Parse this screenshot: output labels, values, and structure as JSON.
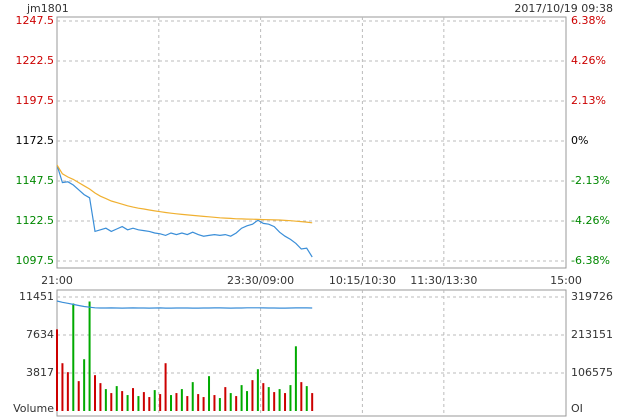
{
  "chart_data": [
    {
      "type": "line",
      "title": "jm1801",
      "subtitle": "2017/10/19 09:38",
      "xlim": [
        0,
        375
      ],
      "xticks": [
        {
          "value": 0,
          "label": "21:00"
        },
        {
          "value": 75,
          "label": null
        },
        {
          "value": 150,
          "label": "23:30/09:00"
        },
        {
          "value": 225,
          "label": "10:15/10:30"
        },
        {
          "value": 285,
          "label": "11:30/13:30"
        },
        {
          "value": 375,
          "label": "15:00"
        }
      ],
      "x": [
        0,
        4,
        8,
        12,
        16,
        20,
        24,
        28,
        32,
        36,
        40,
        44,
        48,
        52,
        56,
        60,
        64,
        68,
        72,
        76,
        80,
        84,
        88,
        92,
        96,
        100,
        104,
        108,
        112,
        116,
        120,
        124,
        128,
        132,
        136,
        140,
        144,
        148,
        152,
        156,
        160,
        164,
        168,
        172,
        176,
        180,
        184,
        188
      ],
      "ylim": [
        1097.5,
        1247.5
      ],
      "yticks": [
        1097.5,
        1122.5,
        1147.5,
        1172.5,
        1197.5,
        1222.5,
        1247.5
      ],
      "reference": 1172.5,
      "y2lim": [
        -6.38,
        6.38
      ],
      "y2ticks": [
        {
          "value": -6.38,
          "label": "-6.38%"
        },
        {
          "value": -4.26,
          "label": "-4.26%"
        },
        {
          "value": -2.13,
          "label": "-2.13%"
        },
        {
          "value": 0,
          "label": "0%"
        },
        {
          "value": 2.13,
          "label": "2.13%"
        },
        {
          "value": 4.26,
          "label": "4.26%"
        },
        {
          "value": 6.38,
          "label": "6.38%"
        }
      ],
      "up_color": "#cc0000",
      "down_color": "#008800",
      "grid": true,
      "series": [
        {
          "color": "#3a8ed8",
          "values": [
            1157.5,
            1146.5,
            1147,
            1145,
            1142,
            1139,
            1137,
            1116,
            1117,
            1118,
            1116,
            1117.5,
            1119,
            1117,
            1118,
            1117,
            1116.5,
            1116,
            1115,
            1114.5,
            1113.5,
            1115,
            1114,
            1115,
            1114,
            1115.5,
            1114,
            1113,
            1113.5,
            1114,
            1113.5,
            1114,
            1113,
            1115,
            1118,
            1119.5,
            1120.5,
            1123,
            1121,
            1120.5,
            1119,
            1115.5,
            1113,
            1111,
            1108.5,
            1105,
            1105.5,
            1100
          ]
        },
        {
          "color": "#f0b030",
          "values": [
            1157.5,
            1152,
            1150,
            1148.5,
            1146.5,
            1144.5,
            1142.5,
            1140,
            1138,
            1136.5,
            1135,
            1134,
            1133,
            1132,
            1131.2,
            1130.5,
            1130,
            1129.4,
            1128.8,
            1128.3,
            1127.8,
            1127.4,
            1127,
            1126.6,
            1126.3,
            1126,
            1125.7,
            1125.4,
            1125.1,
            1124.8,
            1124.5,
            1124.3,
            1124.1,
            1123.9,
            1123.8,
            1123.7,
            1123.6,
            1123.5,
            1123.4,
            1123.3,
            1123.2,
            1123.1,
            1122.9,
            1122.7,
            1122.4,
            1122.1,
            1121.8,
            1121.4
          ]
        }
      ]
    },
    {
      "type": "bar",
      "ylabel": "Volume",
      "y2label": "OI",
      "xlim": [
        0,
        375
      ],
      "x": [
        0,
        4,
        8,
        12,
        16,
        20,
        24,
        28,
        32,
        36,
        40,
        44,
        48,
        52,
        56,
        60,
        64,
        68,
        72,
        76,
        80,
        84,
        88,
        92,
        96,
        100,
        104,
        108,
        112,
        116,
        120,
        124,
        128,
        132,
        136,
        140,
        144,
        148,
        152,
        156,
        160,
        164,
        168,
        172,
        176,
        180,
        184,
        188
      ],
      "ylim": [
        0,
        11451
      ],
      "yticks": [
        3817,
        7634,
        11451
      ],
      "y2lim": [
        0,
        319726
      ],
      "y2ticks": [
        106575,
        213151,
        319726
      ],
      "values": [
        8200,
        4800,
        3900,
        10800,
        3000,
        5200,
        11000,
        3600,
        2800,
        2200,
        1800,
        2500,
        2000,
        1600,
        2300,
        1500,
        1900,
        1400,
        2100,
        1700,
        4800,
        1600,
        1800,
        2200,
        1500,
        2900,
        1700,
        1400,
        3500,
        1600,
        1300,
        2400,
        1800,
        1500,
        2600,
        2000,
        3100,
        4200,
        2800,
        2400,
        1900,
        2200,
        1800,
        2600,
        6500,
        2900,
        2500,
        1800
      ],
      "colors": [
        "#cc0000",
        "#cc0000",
        "#cc0000",
        "#00aa00",
        "#cc0000",
        "#00aa00",
        "#00aa00",
        "#cc0000",
        "#cc0000",
        "#00aa00",
        "#cc0000",
        "#00aa00",
        "#cc0000",
        "#00aa00",
        "#cc0000",
        "#00aa00",
        "#cc0000",
        "#cc0000",
        "#00aa00",
        "#cc0000",
        "#cc0000",
        "#00aa00",
        "#cc0000",
        "#00aa00",
        "#cc0000",
        "#00aa00",
        "#cc0000",
        "#cc0000",
        "#00aa00",
        "#cc0000",
        "#00aa00",
        "#cc0000",
        "#00aa00",
        "#cc0000",
        "#00aa00",
        "#00aa00",
        "#cc0000",
        "#00aa00",
        "#cc0000",
        "#00aa00",
        "#cc0000",
        "#00aa00",
        "#cc0000",
        "#00aa00",
        "#00aa00",
        "#cc0000",
        "#00aa00",
        "#cc0000"
      ],
      "series": [
        {
          "color": "#3a8ed8",
          "axis": "y2",
          "values": [
            308500,
            305000,
            302000,
            299000,
            296000,
            293000,
            291000,
            289500,
            289000,
            288800,
            289100,
            288900,
            288700,
            288900,
            289200,
            289000,
            288800,
            288600,
            288900,
            289100,
            288700,
            288500,
            288800,
            289000,
            288900,
            288700,
            288600,
            288800,
            289000,
            289200,
            289100,
            288900,
            288700,
            288800,
            289000,
            289300,
            289500,
            289400,
            289200,
            289000,
            288900,
            288700,
            288600,
            288800,
            289100,
            289300,
            289200,
            289000
          ]
        }
      ]
    }
  ]
}
